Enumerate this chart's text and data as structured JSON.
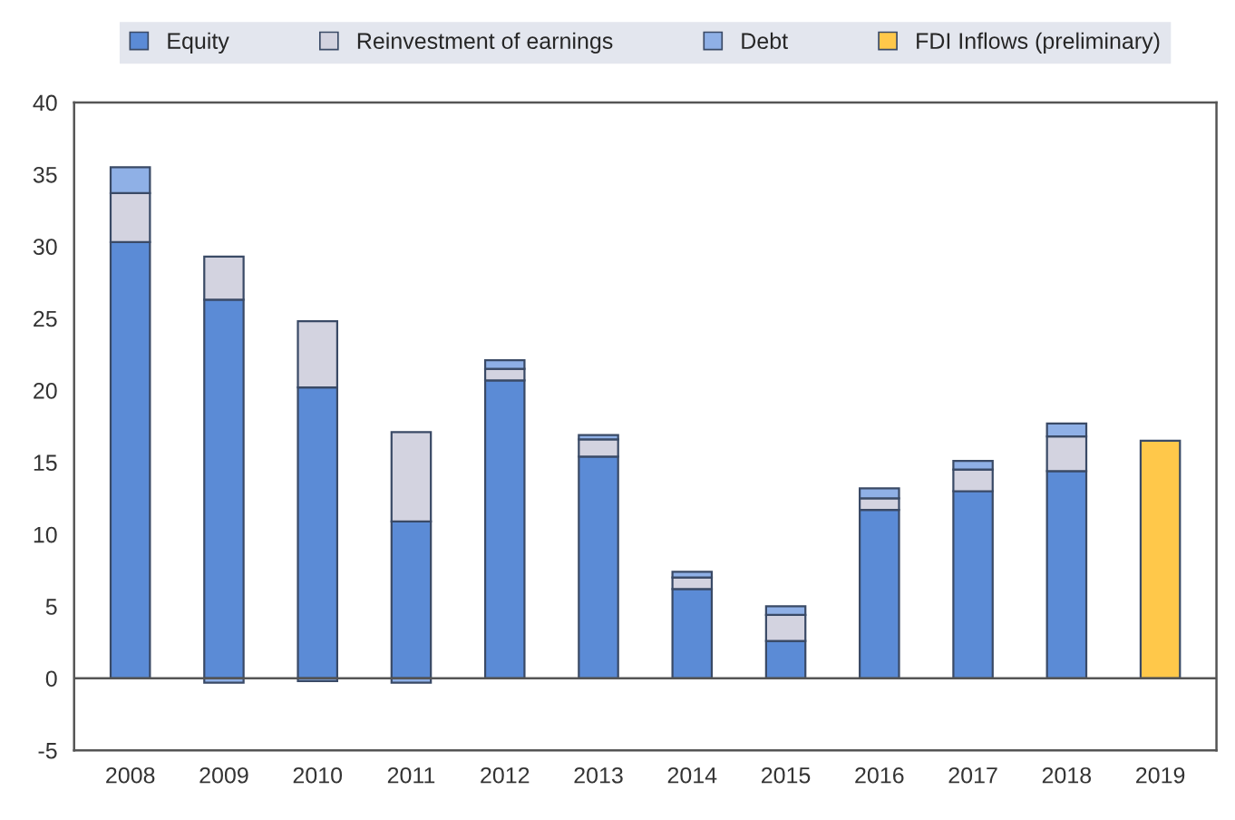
{
  "chart_data": {
    "type": "bar",
    "stacked": true,
    "categories": [
      "2008",
      "2009",
      "2010",
      "2011",
      "2012",
      "2013",
      "2014",
      "2015",
      "2016",
      "2017",
      "2018",
      "2019"
    ],
    "series": [
      {
        "name": "Equity",
        "color": "#5b8bd6",
        "values": [
          30.3,
          26.3,
          20.2,
          10.9,
          20.7,
          15.4,
          6.2,
          2.6,
          11.7,
          13.0,
          14.4,
          null
        ]
      },
      {
        "name": "Reinvestment of earnings",
        "color": "#d3d3e0",
        "values": [
          3.4,
          3.0,
          4.6,
          6.2,
          0.8,
          1.2,
          0.8,
          1.8,
          0.8,
          1.5,
          2.4,
          null
        ]
      },
      {
        "name": "Debt",
        "color": "#8fb0e6",
        "values": [
          1.8,
          -0.3,
          -0.2,
          -0.3,
          0.6,
          0.3,
          0.4,
          0.6,
          0.7,
          0.6,
          0.9,
          null
        ]
      },
      {
        "name": "FDI Inflows (preliminary)",
        "color": "#ffc84a",
        "values": [
          null,
          null,
          null,
          null,
          null,
          null,
          null,
          null,
          null,
          null,
          null,
          16.5
        ]
      }
    ],
    "ylim": [
      -5,
      40
    ],
    "yticks": [
      -5,
      0,
      5,
      10,
      15,
      20,
      25,
      30,
      35,
      40
    ],
    "grid": false,
    "legend": "top",
    "ref_lines": [
      {
        "axis": "y",
        "value": 0,
        "color": "#555555"
      }
    ]
  }
}
